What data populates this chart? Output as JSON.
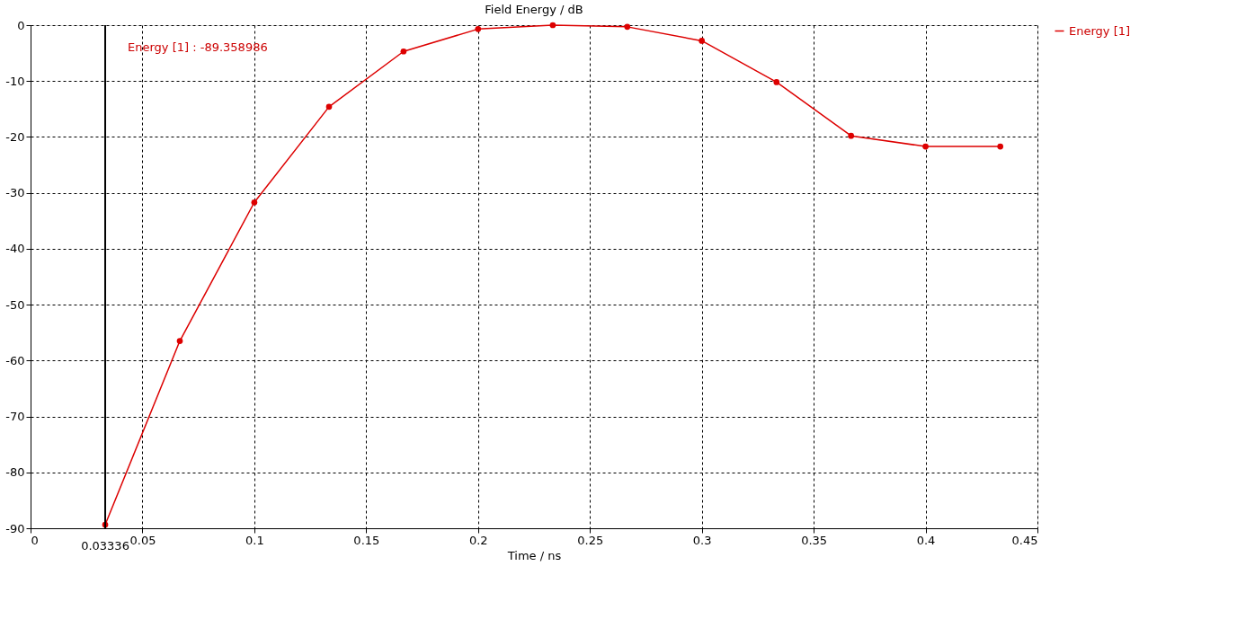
{
  "chart_data": {
    "type": "line",
    "title": "Field Energy / dB",
    "xlabel": "Time / ns",
    "x": [
      0.03336,
      0.0667,
      0.1,
      0.1334,
      0.1667,
      0.2,
      0.2334,
      0.2667,
      0.3,
      0.3334,
      0.3667,
      0.4,
      0.4334
    ],
    "series": [
      {
        "name": "Energy [1]",
        "color": "#dd0000",
        "values": [
          -89.358986,
          -56.5,
          -31.7,
          -14.6,
          -4.7,
          -0.7,
          0,
          -0.3,
          -2.8,
          -10.2,
          -19.8,
          -21.7,
          -21.7
        ]
      }
    ],
    "xlim": [
      0,
      0.45
    ],
    "xticks": [
      0,
      0.05,
      0.1,
      0.15,
      0.2,
      0.25,
      0.3,
      0.35,
      0.4,
      0.45
    ],
    "ylim": [
      -90,
      0
    ],
    "yticks": [
      -90,
      -80,
      -70,
      -60,
      -50,
      -40,
      -30,
      -20,
      -10,
      0
    ],
    "ref_lines": [
      {
        "axis": "x",
        "value": 0.03336,
        "label": "0.03336",
        "color": "#000000"
      }
    ],
    "annotations": [
      "Energy [1] : -89.358986"
    ],
    "grid": true,
    "legend": "top right",
    "marker": "circle",
    "line_style": "solid"
  }
}
